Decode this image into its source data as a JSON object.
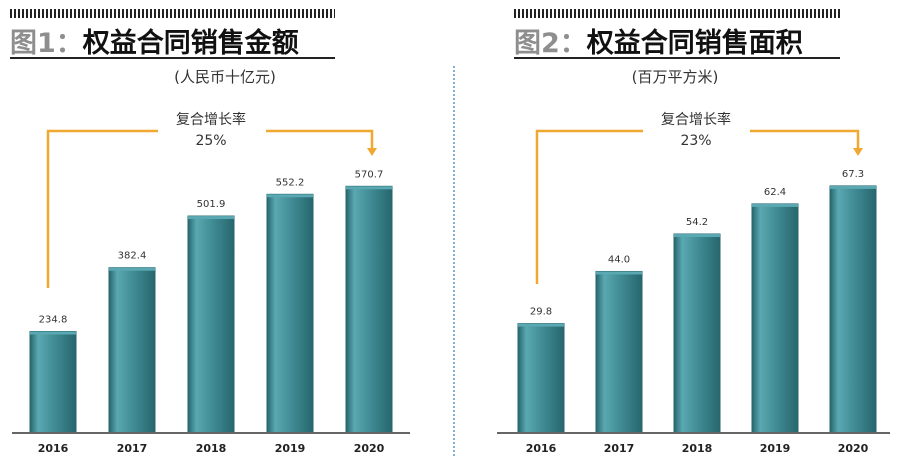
{
  "charts": [
    {
      "fig_no": "图1：",
      "title": "权益合同销售金额",
      "unit": "(人民币十亿元)",
      "cagr_label": "复合增长率",
      "cagr_value": "25%"
    },
    {
      "fig_no": "图2：",
      "title": "权益合同销售面积",
      "unit": "(百万平方米)",
      "cagr_label": "复合增长率",
      "cagr_value": "23%"
    }
  ],
  "colors": {
    "bar": "#3f8a93",
    "bar_light": "#5aa8b1",
    "bar_dark": "#27666d",
    "arrow": "#f0a830",
    "axis": "#666666",
    "title_prefix": "#8e8e8e"
  },
  "chart_data": [
    {
      "type": "bar",
      "title": "权益合同销售金额",
      "subtitle": "(人民币十亿元)",
      "categories": [
        "2016",
        "2017",
        "2018",
        "2019",
        "2020"
      ],
      "values": [
        234.8,
        382.4,
        501.9,
        552.2,
        570.7
      ],
      "value_labels": [
        "234.8",
        "382.4",
        "501.9",
        "552.2",
        "570.7"
      ],
      "annotation": {
        "text": "复合增长率",
        "value": "25%",
        "from": "2016",
        "to": "2020"
      },
      "ylim": [
        0,
        620
      ],
      "grid": false,
      "legend": "none"
    },
    {
      "type": "bar",
      "title": "权益合同销售面积",
      "subtitle": "(百万平方米)",
      "categories": [
        "2016",
        "2017",
        "2018",
        "2019",
        "2020"
      ],
      "values": [
        29.8,
        44.0,
        54.2,
        62.4,
        67.3
      ],
      "value_labels": [
        "29.8",
        "44.0",
        "54.2",
        "62.4",
        "67.3"
      ],
      "annotation": {
        "text": "复合增长率",
        "value": "23%",
        "from": "2016",
        "to": "2020"
      },
      "ylim": [
        0,
        73
      ],
      "grid": false,
      "legend": "none"
    }
  ]
}
